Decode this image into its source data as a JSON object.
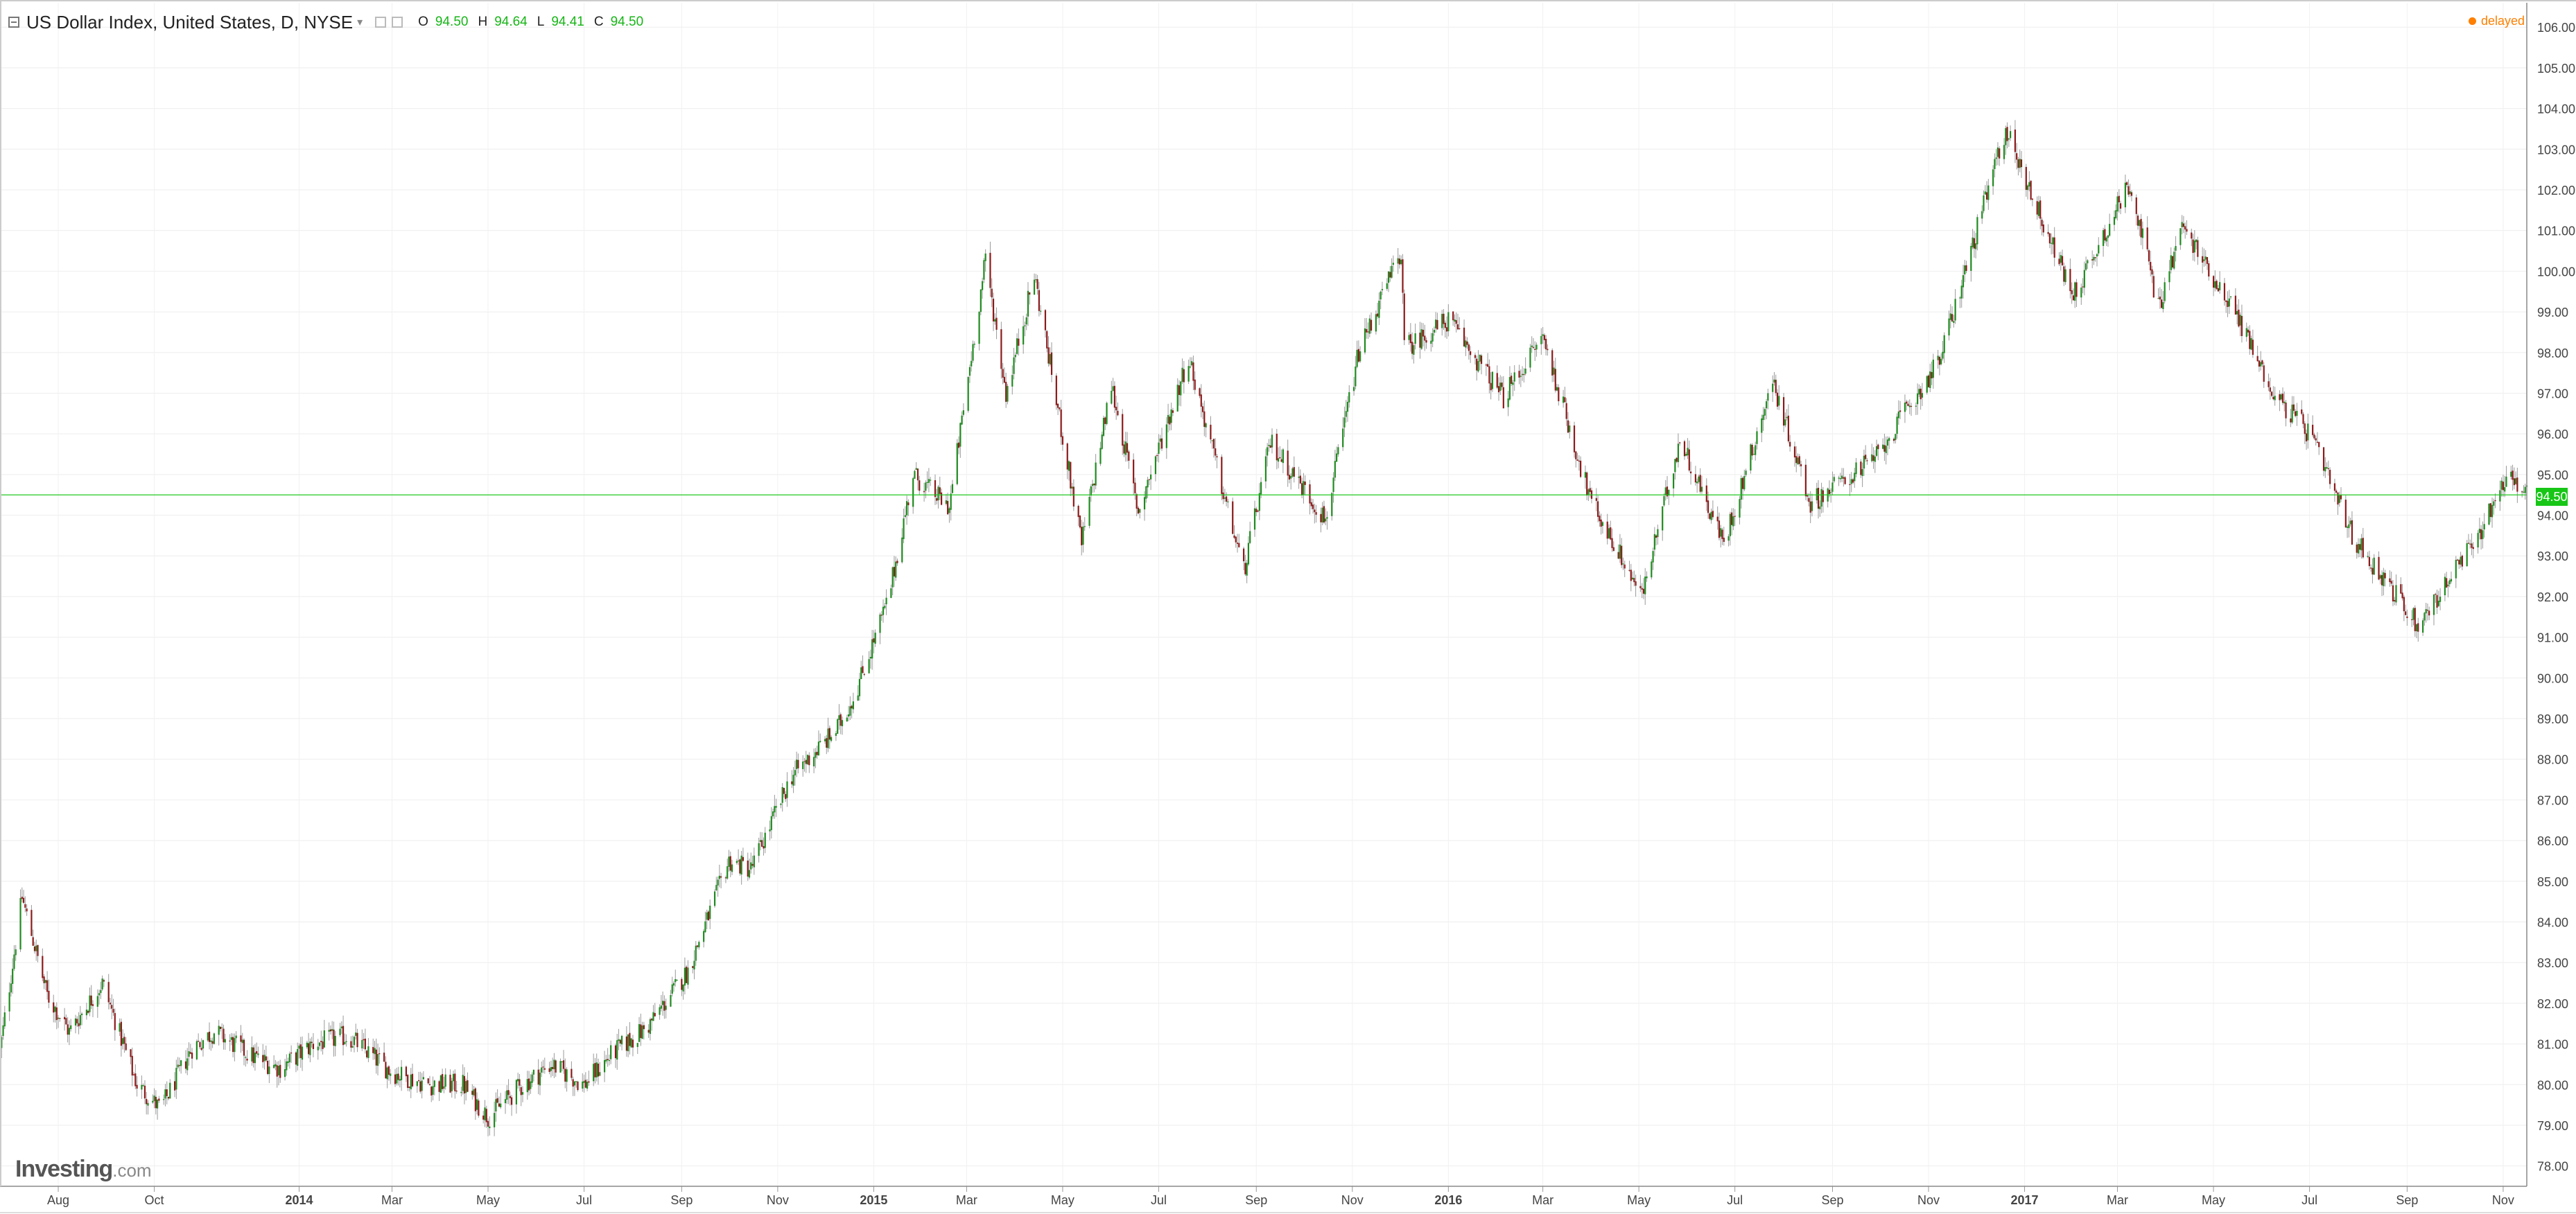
{
  "header": {
    "title": "US Dollar Index, United States, D, NYSE",
    "ohlc": {
      "o_label": "O",
      "o": "94.50",
      "h_label": "H",
      "h": "94.64",
      "l_label": "L",
      "l": "94.41",
      "c_label": "C",
      "c": "94.50"
    },
    "delayed": "delayed"
  },
  "price_tag": "94.50",
  "logo": {
    "main": "Investing",
    "suffix": ".com"
  },
  "icons": [
    "collapse-icon",
    "caret-down-icon",
    "settings-icon",
    "close-icon",
    "delayed-dot-icon"
  ],
  "colors": {
    "up": "#1f8a1f",
    "down": "#8b1a1a",
    "wick": "#999999",
    "price_line": "#17c617",
    "delayed": "#ff7f00"
  },
  "chart_data": {
    "type": "candlestick",
    "title": "US Dollar Index, United States, D, NYSE",
    "xlabel": "",
    "ylabel": "",
    "ylim": [
      77.5,
      106.6
    ],
    "y_ticks": [
      "78.00",
      "79.00",
      "80.00",
      "81.00",
      "82.00",
      "83.00",
      "84.00",
      "85.00",
      "86.00",
      "87.00",
      "88.00",
      "89.00",
      "90.00",
      "91.00",
      "92.00",
      "93.00",
      "94.00",
      "95.00",
      "96.00",
      "97.00",
      "98.00",
      "99.00",
      "100.00",
      "101.00",
      "102.00",
      "103.00",
      "104.00",
      "105.00",
      "106.00"
    ],
    "x_range": [
      "2013-06-25",
      "2017-11-16"
    ],
    "x_ticks": [
      {
        "label": "Aug",
        "date": "2013-08-01",
        "bold": false
      },
      {
        "label": "Oct",
        "date": "2013-10-01",
        "bold": false
      },
      {
        "label": "2014",
        "date": "2014-01-01",
        "bold": true
      },
      {
        "label": "Mar",
        "date": "2014-03-01",
        "bold": false
      },
      {
        "label": "May",
        "date": "2014-05-01",
        "bold": false
      },
      {
        "label": "Jul",
        "date": "2014-07-01",
        "bold": false
      },
      {
        "label": "Sep",
        "date": "2014-09-01",
        "bold": false
      },
      {
        "label": "Nov",
        "date": "2014-11-01",
        "bold": false
      },
      {
        "label": "2015",
        "date": "2015-01-01",
        "bold": true
      },
      {
        "label": "Mar",
        "date": "2015-03-01",
        "bold": false
      },
      {
        "label": "May",
        "date": "2015-05-01",
        "bold": false
      },
      {
        "label": "Jul",
        "date": "2015-07-01",
        "bold": false
      },
      {
        "label": "Sep",
        "date": "2015-09-01",
        "bold": false
      },
      {
        "label": "Nov",
        "date": "2015-11-01",
        "bold": false
      },
      {
        "label": "2016",
        "date": "2016-01-01",
        "bold": true
      },
      {
        "label": "Mar",
        "date": "2016-03-01",
        "bold": false
      },
      {
        "label": "May",
        "date": "2016-05-01",
        "bold": false
      },
      {
        "label": "Jul",
        "date": "2016-07-01",
        "bold": false
      },
      {
        "label": "Sep",
        "date": "2016-09-01",
        "bold": false
      },
      {
        "label": "Nov",
        "date": "2016-11-01",
        "bold": false
      },
      {
        "label": "2017",
        "date": "2017-01-01",
        "bold": true
      },
      {
        "label": "Mar",
        "date": "2017-03-01",
        "bold": false
      },
      {
        "label": "May",
        "date": "2017-05-01",
        "bold": false
      },
      {
        "label": "Jul",
        "date": "2017-07-01",
        "bold": false
      },
      {
        "label": "Sep",
        "date": "2017-09-01",
        "bold": false
      },
      {
        "label": "Nov",
        "date": "2017-11-01",
        "bold": false
      }
    ],
    "current_price": 94.5,
    "grid": true,
    "close_path": [
      [
        "2013-06-25",
        80.8
      ],
      [
        "2013-07-09",
        84.6
      ],
      [
        "2013-07-25",
        82.2
      ],
      [
        "2013-08-08",
        81.3
      ],
      [
        "2013-08-29",
        82.5
      ],
      [
        "2013-09-20",
        80.0
      ],
      [
        "2013-10-05",
        79.4
      ],
      [
        "2013-10-25",
        80.9
      ],
      [
        "2013-11-08",
        81.3
      ],
      [
        "2013-12-02",
        80.7
      ],
      [
        "2013-12-20",
        80.4
      ],
      [
        "2014-01-10",
        81.0
      ],
      [
        "2014-02-01",
        81.2
      ],
      [
        "2014-03-01",
        80.3
      ],
      [
        "2014-03-25",
        80.0
      ],
      [
        "2014-04-15",
        80.0
      ],
      [
        "2014-05-01",
        79.2
      ],
      [
        "2014-05-20",
        79.9
      ],
      [
        "2014-06-10",
        80.5
      ],
      [
        "2014-07-01",
        80.0
      ],
      [
        "2014-07-20",
        80.8
      ],
      [
        "2014-08-10",
        81.4
      ],
      [
        "2014-09-05",
        82.8
      ],
      [
        "2014-10-01",
        85.5
      ],
      [
        "2014-10-15",
        85.3
      ],
      [
        "2014-11-10",
        87.6
      ],
      [
        "2014-12-08",
        88.7
      ],
      [
        "2014-12-20",
        89.6
      ],
      [
        "2015-01-10",
        91.9
      ],
      [
        "2015-01-26",
        95.0
      ],
      [
        "2015-02-18",
        94.2
      ],
      [
        "2015-03-13",
        100.3
      ],
      [
        "2015-03-26",
        97.0
      ],
      [
        "2015-04-13",
        99.9
      ],
      [
        "2015-05-13",
        93.3
      ],
      [
        "2015-06-01",
        97.2
      ],
      [
        "2015-06-18",
        94.1
      ],
      [
        "2015-07-20",
        97.9
      ],
      [
        "2015-08-24",
        92.6
      ],
      [
        "2015-09-10",
        95.8
      ],
      [
        "2015-10-15",
        93.9
      ],
      [
        "2015-11-05",
        98.0
      ],
      [
        "2015-12-02",
        100.5
      ],
      [
        "2015-12-04",
        98.1
      ],
      [
        "2016-01-01",
        98.8
      ],
      [
        "2016-02-05",
        96.9
      ],
      [
        "2016-03-01",
        98.4
      ],
      [
        "2016-03-31",
        94.4
      ],
      [
        "2016-05-03",
        92.0
      ],
      [
        "2016-05-27",
        95.9
      ],
      [
        "2016-06-24",
        93.3
      ],
      [
        "2016-07-25",
        97.3
      ],
      [
        "2016-08-18",
        94.3
      ],
      [
        "2016-09-28",
        95.4
      ],
      [
        "2016-11-08",
        97.8
      ],
      [
        "2016-12-20",
        103.5
      ],
      [
        "2017-01-20",
        100.5
      ],
      [
        "2017-02-01",
        99.4
      ],
      [
        "2017-03-09",
        102.2
      ],
      [
        "2017-03-27",
        99.1
      ],
      [
        "2017-04-11",
        101.1
      ],
      [
        "2017-05-15",
        99.0
      ],
      [
        "2017-06-08",
        97.0
      ],
      [
        "2017-07-01",
        96.0
      ],
      [
        "2017-07-28",
        93.5
      ],
      [
        "2017-09-08",
        91.3
      ],
      [
        "2017-10-15",
        93.4
      ],
      [
        "2017-11-03",
        95.0
      ],
      [
        "2017-11-16",
        94.5
      ]
    ]
  }
}
